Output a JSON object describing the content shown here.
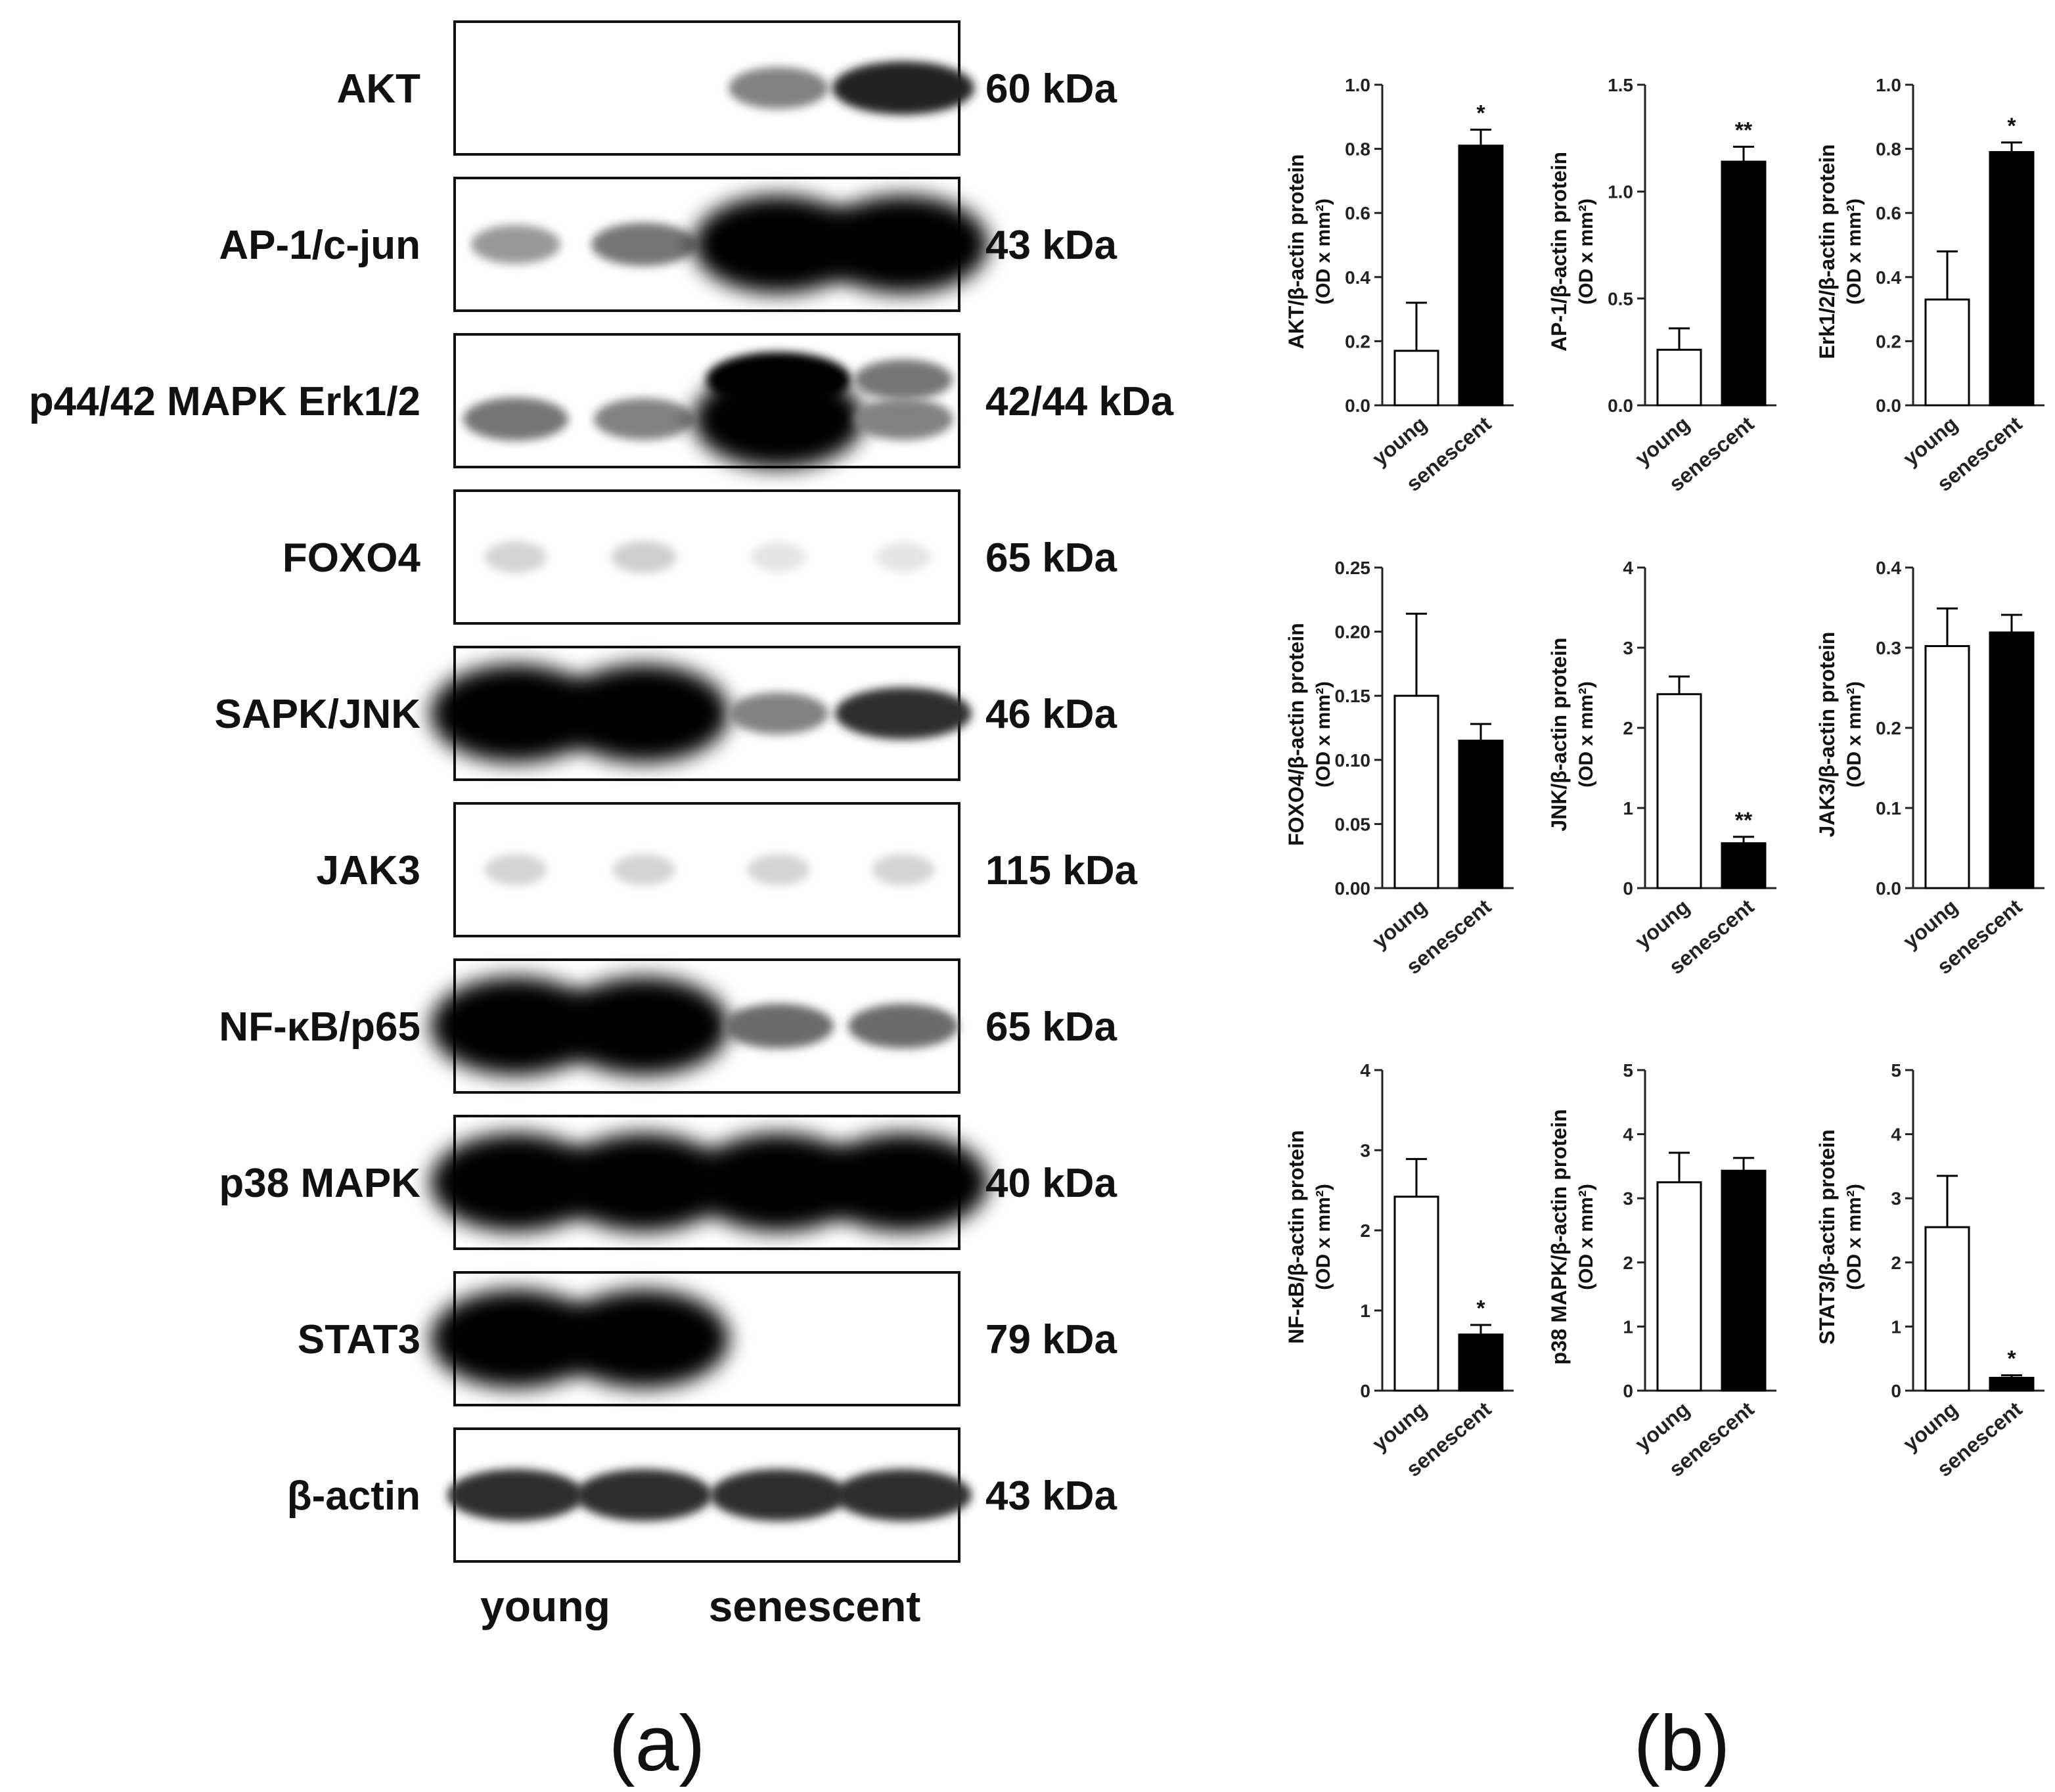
{
  "panel_a": {
    "letter": "(a)",
    "lane_labels": [
      "young",
      "senescent"
    ],
    "blots": [
      {
        "protein": "AKT",
        "size": "60 kDa",
        "bands": [
          0,
          0,
          0.45,
          0.85
        ],
        "second_row": [
          0,
          0,
          0,
          0
        ],
        "halo": false
      },
      {
        "protein": "AP-1/c-jun",
        "size": "43 kDa",
        "bands": [
          0.35,
          0.5,
          1.0,
          1.0
        ],
        "second_row": [
          0,
          0,
          0,
          0
        ],
        "halo": false
      },
      {
        "protein": "p44/42 MAPK Erk1/2",
        "size": "42/44 kDa",
        "bands": [
          0.5,
          0.45,
          1.0,
          0.45
        ],
        "second_row": [
          0,
          0,
          1.0,
          0.5
        ],
        "halo": false
      },
      {
        "protein": "FOXO4",
        "size": "65 kDa",
        "bands": [
          0.1,
          0.12,
          0.03,
          0.03
        ],
        "second_row": [
          0,
          0,
          0,
          0
        ],
        "halo": false
      },
      {
        "protein": "SAPK/JNK",
        "size": "46 kDa",
        "bands": [
          1.0,
          1.0,
          0.45,
          0.8
        ],
        "second_row": [
          0,
          0,
          0,
          0
        ],
        "halo": false
      },
      {
        "protein": "JAK3",
        "size": "115 kDa",
        "bands": [
          0.1,
          0.1,
          0.1,
          0.1
        ],
        "second_row": [
          0,
          0,
          0,
          0
        ],
        "halo": false
      },
      {
        "protein": "NF-κB/p65",
        "size": "65 kDa",
        "bands": [
          1.0,
          1.0,
          0.55,
          0.55
        ],
        "second_row": [
          0,
          0,
          0,
          0
        ],
        "halo": false
      },
      {
        "protein": "p38 MAPK",
        "size": "40 kDa",
        "bands": [
          1.0,
          1.0,
          1.0,
          1.0
        ],
        "second_row": [
          0,
          0,
          0,
          0
        ],
        "halo": false
      },
      {
        "protein": "STAT3",
        "size": "79 kDa",
        "bands": [
          1.0,
          1.0,
          0,
          0
        ],
        "second_row": [
          0,
          0,
          0,
          0
        ],
        "halo": false
      },
      {
        "protein": "β-actin",
        "size": "43 kDa",
        "bands": [
          0.8,
          0.8,
          0.8,
          0.8
        ],
        "second_row": [
          0,
          0,
          0,
          0
        ],
        "halo": true
      }
    ]
  },
  "panel_b": {
    "letter": "(b)"
  },
  "chart_data": [
    {
      "type": "bar",
      "ylabel": "AKT/β-actin protein",
      "yunit": "(OD x mm²)",
      "categories": [
        "young",
        "senescent"
      ],
      "values": [
        0.17,
        0.81
      ],
      "errors": [
        0.15,
        0.05
      ],
      "ylim": [
        0,
        1.0
      ],
      "yticks": [
        "0.0",
        "0.2",
        "0.4",
        "0.6",
        "0.8",
        "1.0"
      ],
      "annotations": [
        "",
        "*"
      ]
    },
    {
      "type": "bar",
      "ylabel": "AP-1/β-actin protein",
      "yunit": "(OD x mm²)",
      "categories": [
        "young",
        "senescent"
      ],
      "values": [
        0.26,
        1.14
      ],
      "errors": [
        0.1,
        0.07
      ],
      "ylim": [
        0,
        1.5
      ],
      "yticks": [
        "0.0",
        "0.5",
        "1.0",
        "1.5"
      ],
      "annotations": [
        "",
        "**"
      ]
    },
    {
      "type": "bar",
      "ylabel": "Erk1/2/β-actin protein",
      "yunit": "(OD x mm²)",
      "categories": [
        "young",
        "senescent"
      ],
      "values": [
        0.33,
        0.79
      ],
      "errors": [
        0.15,
        0.03
      ],
      "ylim": [
        0,
        1.0
      ],
      "yticks": [
        "0.0",
        "0.2",
        "0.4",
        "0.6",
        "0.8",
        "1.0"
      ],
      "annotations": [
        "",
        "*"
      ]
    },
    {
      "type": "bar",
      "ylabel": "FOXO4/β-actin protein",
      "yunit": "(OD x mm²)",
      "categories": [
        "young",
        "senescent"
      ],
      "values": [
        0.15,
        0.115
      ],
      "errors": [
        0.064,
        0.013
      ],
      "ylim": [
        0,
        0.25
      ],
      "yticks": [
        "0.00",
        "0.05",
        "0.10",
        "0.15",
        "0.20",
        "0.25"
      ],
      "annotations": [
        "",
        ""
      ]
    },
    {
      "type": "bar",
      "ylabel": "JNK/β-actin protein",
      "yunit": "(OD x mm²)",
      "categories": [
        "young",
        "senescent"
      ],
      "values": [
        2.42,
        0.56
      ],
      "errors": [
        0.22,
        0.08
      ],
      "ylim": [
        0,
        4
      ],
      "yticks": [
        "0",
        "1",
        "2",
        "3",
        "4"
      ],
      "annotations": [
        "",
        "**"
      ]
    },
    {
      "type": "bar",
      "ylabel": "JAK3/β-actin protein",
      "yunit": "(OD x mm²)",
      "categories": [
        "young",
        "senescent"
      ],
      "values": [
        0.302,
        0.319
      ],
      "errors": [
        0.047,
        0.022
      ],
      "ylim": [
        0,
        0.4
      ],
      "yticks": [
        "0.0",
        "0.1",
        "0.2",
        "0.3",
        "0.4"
      ],
      "annotations": [
        "",
        ""
      ]
    },
    {
      "type": "bar",
      "ylabel": "NF-κB/β-actin protein",
      "yunit": "(OD x mm²)",
      "categories": [
        "young",
        "senescent"
      ],
      "values": [
        2.42,
        0.7
      ],
      "errors": [
        0.47,
        0.12
      ],
      "ylim": [
        0,
        4
      ],
      "yticks": [
        "0",
        "1",
        "2",
        "3",
        "4"
      ],
      "annotations": [
        "",
        "*"
      ]
    },
    {
      "type": "bar",
      "ylabel": "p38 MAPK/β-actin protein",
      "yunit": "(OD x mm²)",
      "categories": [
        "young",
        "senescent"
      ],
      "values": [
        3.25,
        3.43
      ],
      "errors": [
        0.46,
        0.2
      ],
      "ylim": [
        0,
        5
      ],
      "yticks": [
        "0",
        "1",
        "2",
        "3",
        "4",
        "5"
      ],
      "annotations": [
        "",
        ""
      ]
    },
    {
      "type": "bar",
      "ylabel": "STAT3/β-actin protein",
      "yunit": "(OD x mm²)",
      "categories": [
        "young",
        "senescent"
      ],
      "values": [
        2.55,
        0.2
      ],
      "errors": [
        0.8,
        0.04
      ],
      "ylim": [
        0,
        5
      ],
      "yticks": [
        "0",
        "1",
        "2",
        "3",
        "4",
        "5"
      ],
      "annotations": [
        "",
        "*"
      ]
    }
  ]
}
